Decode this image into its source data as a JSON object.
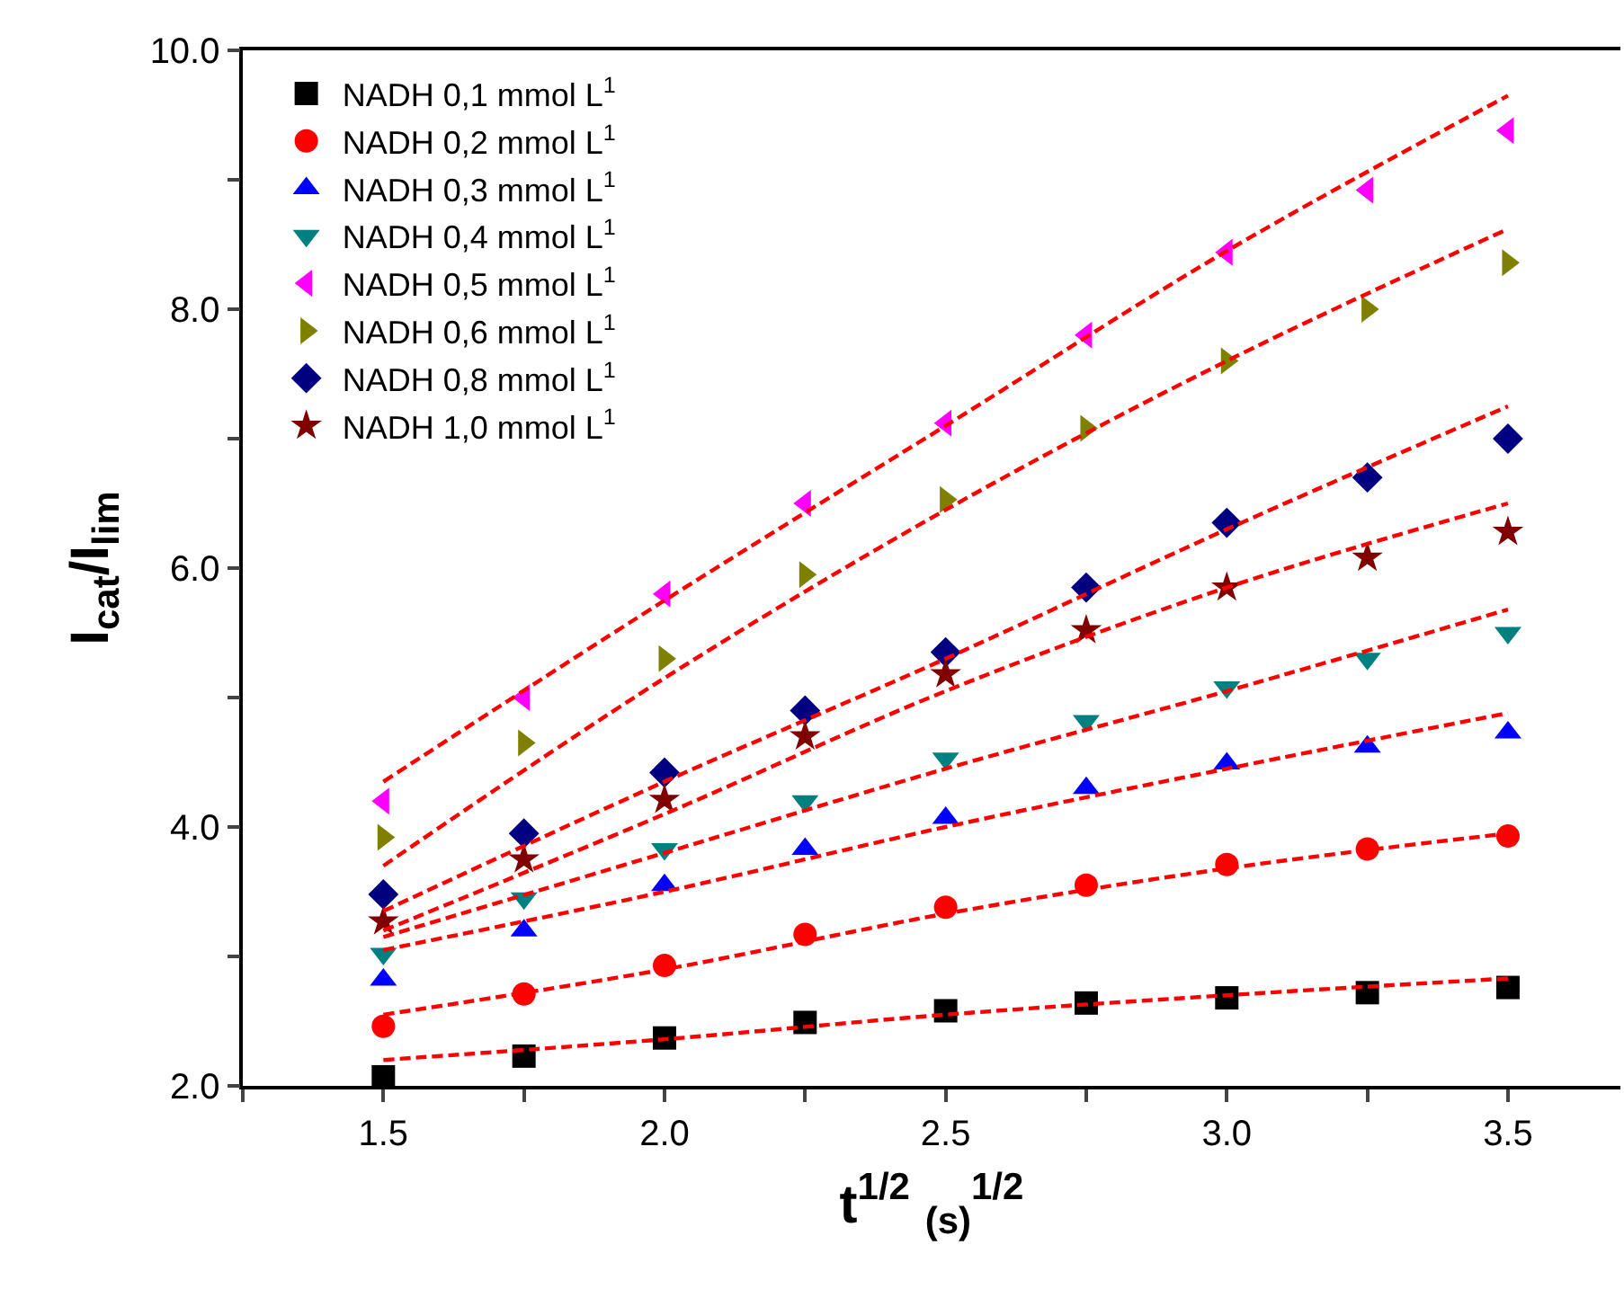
{
  "chart_data": {
    "type": "scatter",
    "xlabel": "t$^{1/2}$ $_{(s)}$$^{1/2}$",
    "ylabel": "I$_{cat}$/I$_{lim}$",
    "x": [
      1.5,
      1.75,
      2.0,
      2.25,
      2.5,
      2.75,
      3.0,
      3.25,
      3.5
    ],
    "xlim": [
      1.25,
      3.7
    ],
    "ylim": [
      2.0,
      10.0
    ],
    "xticks": [
      {
        "value": 1.25,
        "label": null
      },
      1.5,
      {
        "value": 1.75,
        "label": null
      },
      {
        "value": 2.0,
        "label": "2.0"
      },
      {
        "value": 2.25,
        "label": null
      },
      2.5,
      {
        "value": 2.75,
        "label": null
      },
      {
        "value": 3.0,
        "label": "3.0"
      },
      {
        "value": 3.25,
        "label": null
      },
      3.5
    ],
    "yticks": [
      {
        "value": 2.0,
        "label": "2.0"
      },
      {
        "value": 3.0,
        "label": null
      },
      {
        "value": 4.0,
        "label": "4.0"
      },
      {
        "value": 5.0,
        "label": null
      },
      {
        "value": 6.0,
        "label": "6.0"
      },
      {
        "value": 7.0,
        "label": null
      },
      {
        "value": 8.0,
        "label": "8.0"
      },
      {
        "value": 9.0,
        "label": null
      },
      {
        "value": 10.0,
        "label": "10.0"
      }
    ],
    "legend": "top left",
    "series": [
      {
        "name": "NADH 0,1 mmol L$^{1}$",
        "color": "#000000",
        "marker": "square",
        "values": [
          2.07,
          2.23,
          2.37,
          2.49,
          2.58,
          2.64,
          2.68,
          2.72,
          2.76
        ]
      },
      {
        "name": "NADH 0,2 mmol L$^{1}$",
        "color": "#ff0000",
        "marker": "circle",
        "values": [
          2.46,
          2.71,
          2.93,
          3.17,
          3.38,
          3.55,
          3.71,
          3.83,
          3.93
        ]
      },
      {
        "name": "NADH 0,3 mmol L$^{1}$",
        "color": "#0000ff",
        "marker": "triangle",
        "values": [
          2.82,
          3.2,
          3.55,
          3.83,
          4.07,
          4.3,
          4.49,
          4.62,
          4.73
        ]
      },
      {
        "name": "NADH 0,4 mmol L$^{1}$",
        "color": "#008080",
        "marker": "triangle-down",
        "values": [
          3.02,
          3.45,
          3.83,
          4.2,
          4.53,
          4.82,
          5.08,
          5.3,
          5.5
        ]
      },
      {
        "name": "NADH 0,5 mmol L$^{1}$",
        "color": "#ff00ff",
        "marker": "triangle-left",
        "values": [
          4.2,
          5.0,
          5.8,
          6.5,
          7.12,
          7.8,
          8.44,
          8.92,
          9.38
        ]
      },
      {
        "name": "NADH 0,6 mmol L$^{1}$",
        "color": "#808000",
        "marker": "triangle-right",
        "values": [
          3.92,
          4.65,
          5.3,
          5.95,
          6.53,
          7.08,
          7.6,
          8.0,
          8.36
        ]
      },
      {
        "name": "NADH 0,8 mmol L$^{1}$",
        "color": "#000080",
        "marker": "diamond",
        "values": [
          3.48,
          3.95,
          4.42,
          4.9,
          5.35,
          5.85,
          6.35,
          6.7,
          7.0
        ]
      },
      {
        "name": "NADH 1,0 mmol L$^{1}$",
        "color": "#800000",
        "marker": "star",
        "values": [
          3.27,
          3.75,
          4.21,
          4.7,
          5.18,
          5.52,
          5.85,
          6.08,
          6.28
        ]
      },
      {
        "type": "line",
        "color": "#ff0000",
        "marker": "none",
        "line_style": "dashed",
        "x": [
          1.5,
          2.0,
          2.5,
          3.0,
          3.5
        ],
        "values": [
          2.2,
          2.36,
          2.55,
          2.7,
          2.83
        ]
      },
      {
        "type": "line",
        "color": "#ff0000",
        "marker": "none",
        "line_style": "dashed",
        "x": [
          1.5,
          2.0,
          2.5,
          3.0,
          3.5
        ],
        "values": [
          2.55,
          2.9,
          3.33,
          3.68,
          3.95
        ]
      },
      {
        "type": "line",
        "color": "#ff0000",
        "marker": "none",
        "line_style": "dashed",
        "x": [
          1.5,
          2.0,
          2.5,
          3.0,
          3.5
        ],
        "values": [
          3.05,
          3.5,
          4.0,
          4.45,
          4.88
        ]
      },
      {
        "type": "line",
        "color": "#ff0000",
        "marker": "none",
        "line_style": "dashed",
        "x": [
          1.5,
          2.0,
          2.5,
          3.0,
          3.5
        ],
        "values": [
          3.15,
          3.8,
          4.45,
          5.05,
          5.68
        ]
      },
      {
        "type": "line",
        "color": "#ff0000",
        "marker": "none",
        "line_style": "dashed",
        "x": [
          1.5,
          2.0,
          2.5,
          3.0,
          3.5
        ],
        "values": [
          4.35,
          5.75,
          7.1,
          8.45,
          9.65
        ]
      },
      {
        "type": "line",
        "color": "#ff0000",
        "marker": "none",
        "line_style": "dashed",
        "x": [
          1.5,
          2.0,
          2.5,
          3.0,
          3.5
        ],
        "values": [
          3.7,
          5.15,
          6.45,
          7.6,
          8.62
        ]
      },
      {
        "type": "line",
        "color": "#ff0000",
        "marker": "none",
        "line_style": "dashed",
        "x": [
          1.5,
          2.0,
          2.5,
          3.0,
          3.5
        ],
        "values": [
          3.35,
          4.35,
          5.3,
          6.3,
          7.25
        ]
      },
      {
        "type": "line",
        "color": "#ff0000",
        "marker": "none",
        "line_style": "dashed",
        "x": [
          1.5,
          2.0,
          2.5,
          3.0,
          3.5
        ],
        "values": [
          3.2,
          4.1,
          5.05,
          5.85,
          6.5
        ]
      }
    ]
  }
}
